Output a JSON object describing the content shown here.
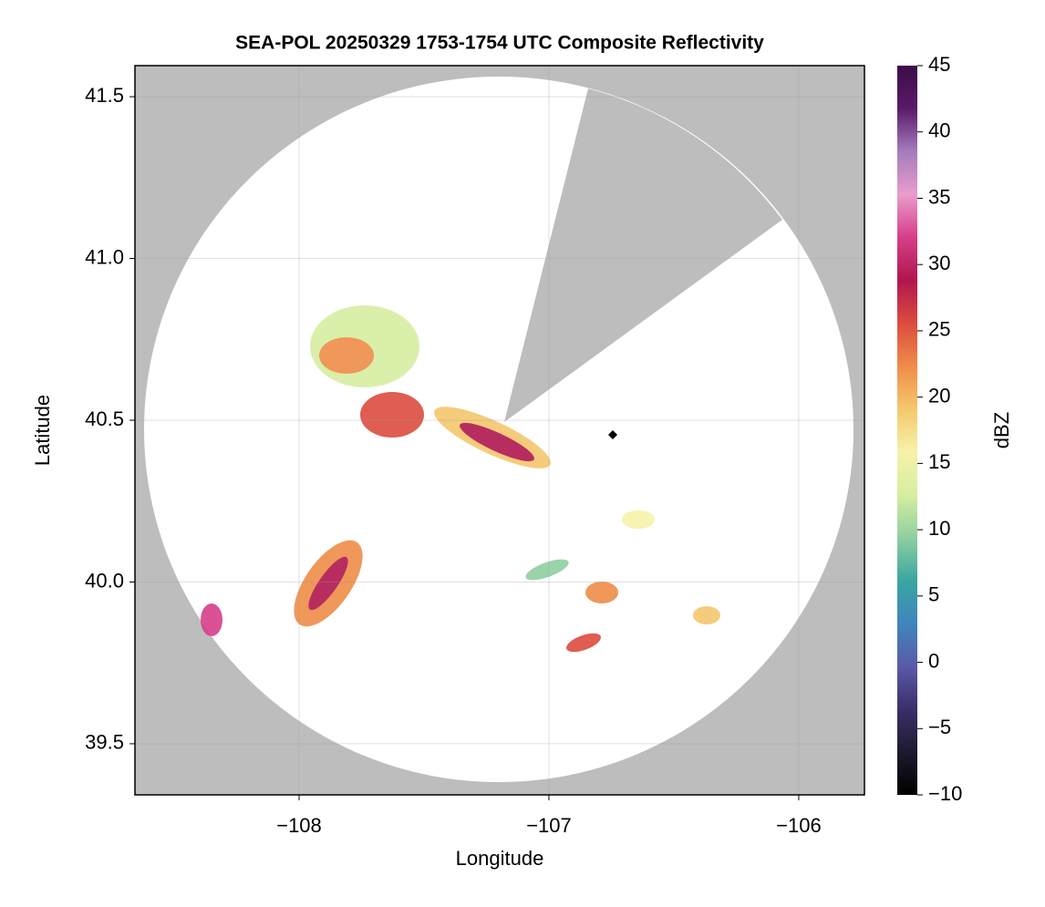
{
  "chart_data": {
    "type": "radar-map",
    "title": "SEA-POL 20250329 1753-1754 UTC Composite Reflectivity",
    "xlabel": "Longitude",
    "ylabel": "Latitude",
    "xlim": [
      -108.657,
      -105.737
    ],
    "ylim": [
      39.342,
      41.596
    ],
    "xticks": [
      {
        "value": -108,
        "label": "−108"
      },
      {
        "value": -107,
        "label": "−107"
      },
      {
        "value": -106,
        "label": "−106"
      }
    ],
    "yticks": [
      39.5,
      {
        "value": 40,
        "label": "40.0"
      },
      40.5,
      {
        "value": 41,
        "label": "41.0"
      },
      41.5
    ],
    "grid": true,
    "colorbar": {
      "label": "dBZ",
      "lim": [
        -10,
        45
      ],
      "ticks": [
        {
          "value": -10,
          "label": "−10"
        },
        {
          "value": -5,
          "label": "−5"
        },
        0,
        5,
        10,
        15,
        20,
        25,
        30,
        35,
        40,
        45
      ],
      "colors": [
        "#000000",
        "#1e1a2e",
        "#3b2f6b",
        "#5a5aa8",
        "#3f86bd",
        "#3aa6a0",
        "#8fcfa0",
        "#d6eea0",
        "#f6f2a8",
        "#f4c76c",
        "#ef8c48",
        "#dc4b3e",
        "#b0164f",
        "#d63f8a",
        "#e99ccb",
        "#a57bbd",
        "#5a1a68",
        "#3b0d4a"
      ]
    }
  }
}
